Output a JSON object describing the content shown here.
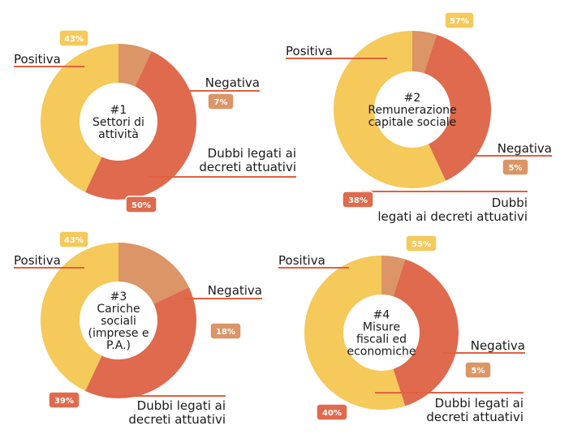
{
  "chart_data": [
    {
      "type": "donut",
      "center_label": [
        "#1",
        "Settori di",
        "attività"
      ],
      "slices": [
        {
          "name": "Positiva",
          "value": 43,
          "label": "43%",
          "color": "#F5C95A"
        },
        {
          "name": "Negativa",
          "value": 7,
          "label": "7%",
          "color": "#DB9566"
        },
        {
          "name": "Dubbi legati ai decreti attuativi",
          "value": 50,
          "label": "50%",
          "color": "#DF6A4E"
        }
      ],
      "category_labels": {
        "positiva": [
          "Positiva"
        ],
        "negativa": [
          "Negativa"
        ],
        "dubbi": [
          "Dubbi legati ai",
          "decreti attuativi"
        ]
      }
    },
    {
      "type": "donut",
      "center_label": [
        "#2",
        "Remunerazione",
        "capitale sociale"
      ],
      "slices": [
        {
          "name": "Positiva",
          "value": 57,
          "label": "57%",
          "color": "#F5C95A"
        },
        {
          "name": "Negativa",
          "value": 5,
          "label": "5%",
          "color": "#DB9566"
        },
        {
          "name": "Dubbi legati ai decreti attuativi",
          "value": 38,
          "label": "38%",
          "color": "#DF6A4E"
        }
      ],
      "category_labels": {
        "positiva": [
          "Positiva"
        ],
        "negativa": [
          "Negativa"
        ],
        "dubbi": [
          "Dubbi",
          "legati ai decreti attuativi"
        ]
      }
    },
    {
      "type": "donut",
      "center_label": [
        "#3",
        "Cariche",
        "sociali",
        "(imprese e",
        "P.A.)"
      ],
      "slices": [
        {
          "name": "Positiva",
          "value": 43,
          "label": "43%",
          "color": "#F5C95A"
        },
        {
          "name": "Negativa",
          "value": 18,
          "label": "18%",
          "color": "#DB9566"
        },
        {
          "name": "Dubbi legati ai decreti attuativi",
          "value": 39,
          "label": "39%",
          "color": "#DF6A4E"
        }
      ],
      "category_labels": {
        "positiva": [
          "Positiva"
        ],
        "negativa": [
          "Negativa"
        ],
        "dubbi": [
          "Dubbi legati ai",
          "decreti attuativi"
        ]
      }
    },
    {
      "type": "donut",
      "center_label": [
        "#4",
        "Misure",
        "fiscali ed",
        "economiche"
      ],
      "slices": [
        {
          "name": "Positiva",
          "value": 55,
          "label": "55%",
          "color": "#F5C95A"
        },
        {
          "name": "Negativa",
          "value": 5,
          "label": "5%",
          "color": "#DB9566"
        },
        {
          "name": "Dubbi legati ai decreti attuativi",
          "value": 40,
          "label": "40%",
          "color": "#DF6A4E"
        }
      ],
      "category_labels": {
        "positiva": [
          "Positiva"
        ],
        "negativa": [
          "Negativa"
        ],
        "dubbi": [
          "Dubbi legati ai",
          "decreti attuativi"
        ]
      }
    }
  ],
  "colors": {
    "line": "#E2603E",
    "positiva": "#F5C95A",
    "negativa": "#DB9566",
    "dubbi": "#DF6A4E"
  }
}
